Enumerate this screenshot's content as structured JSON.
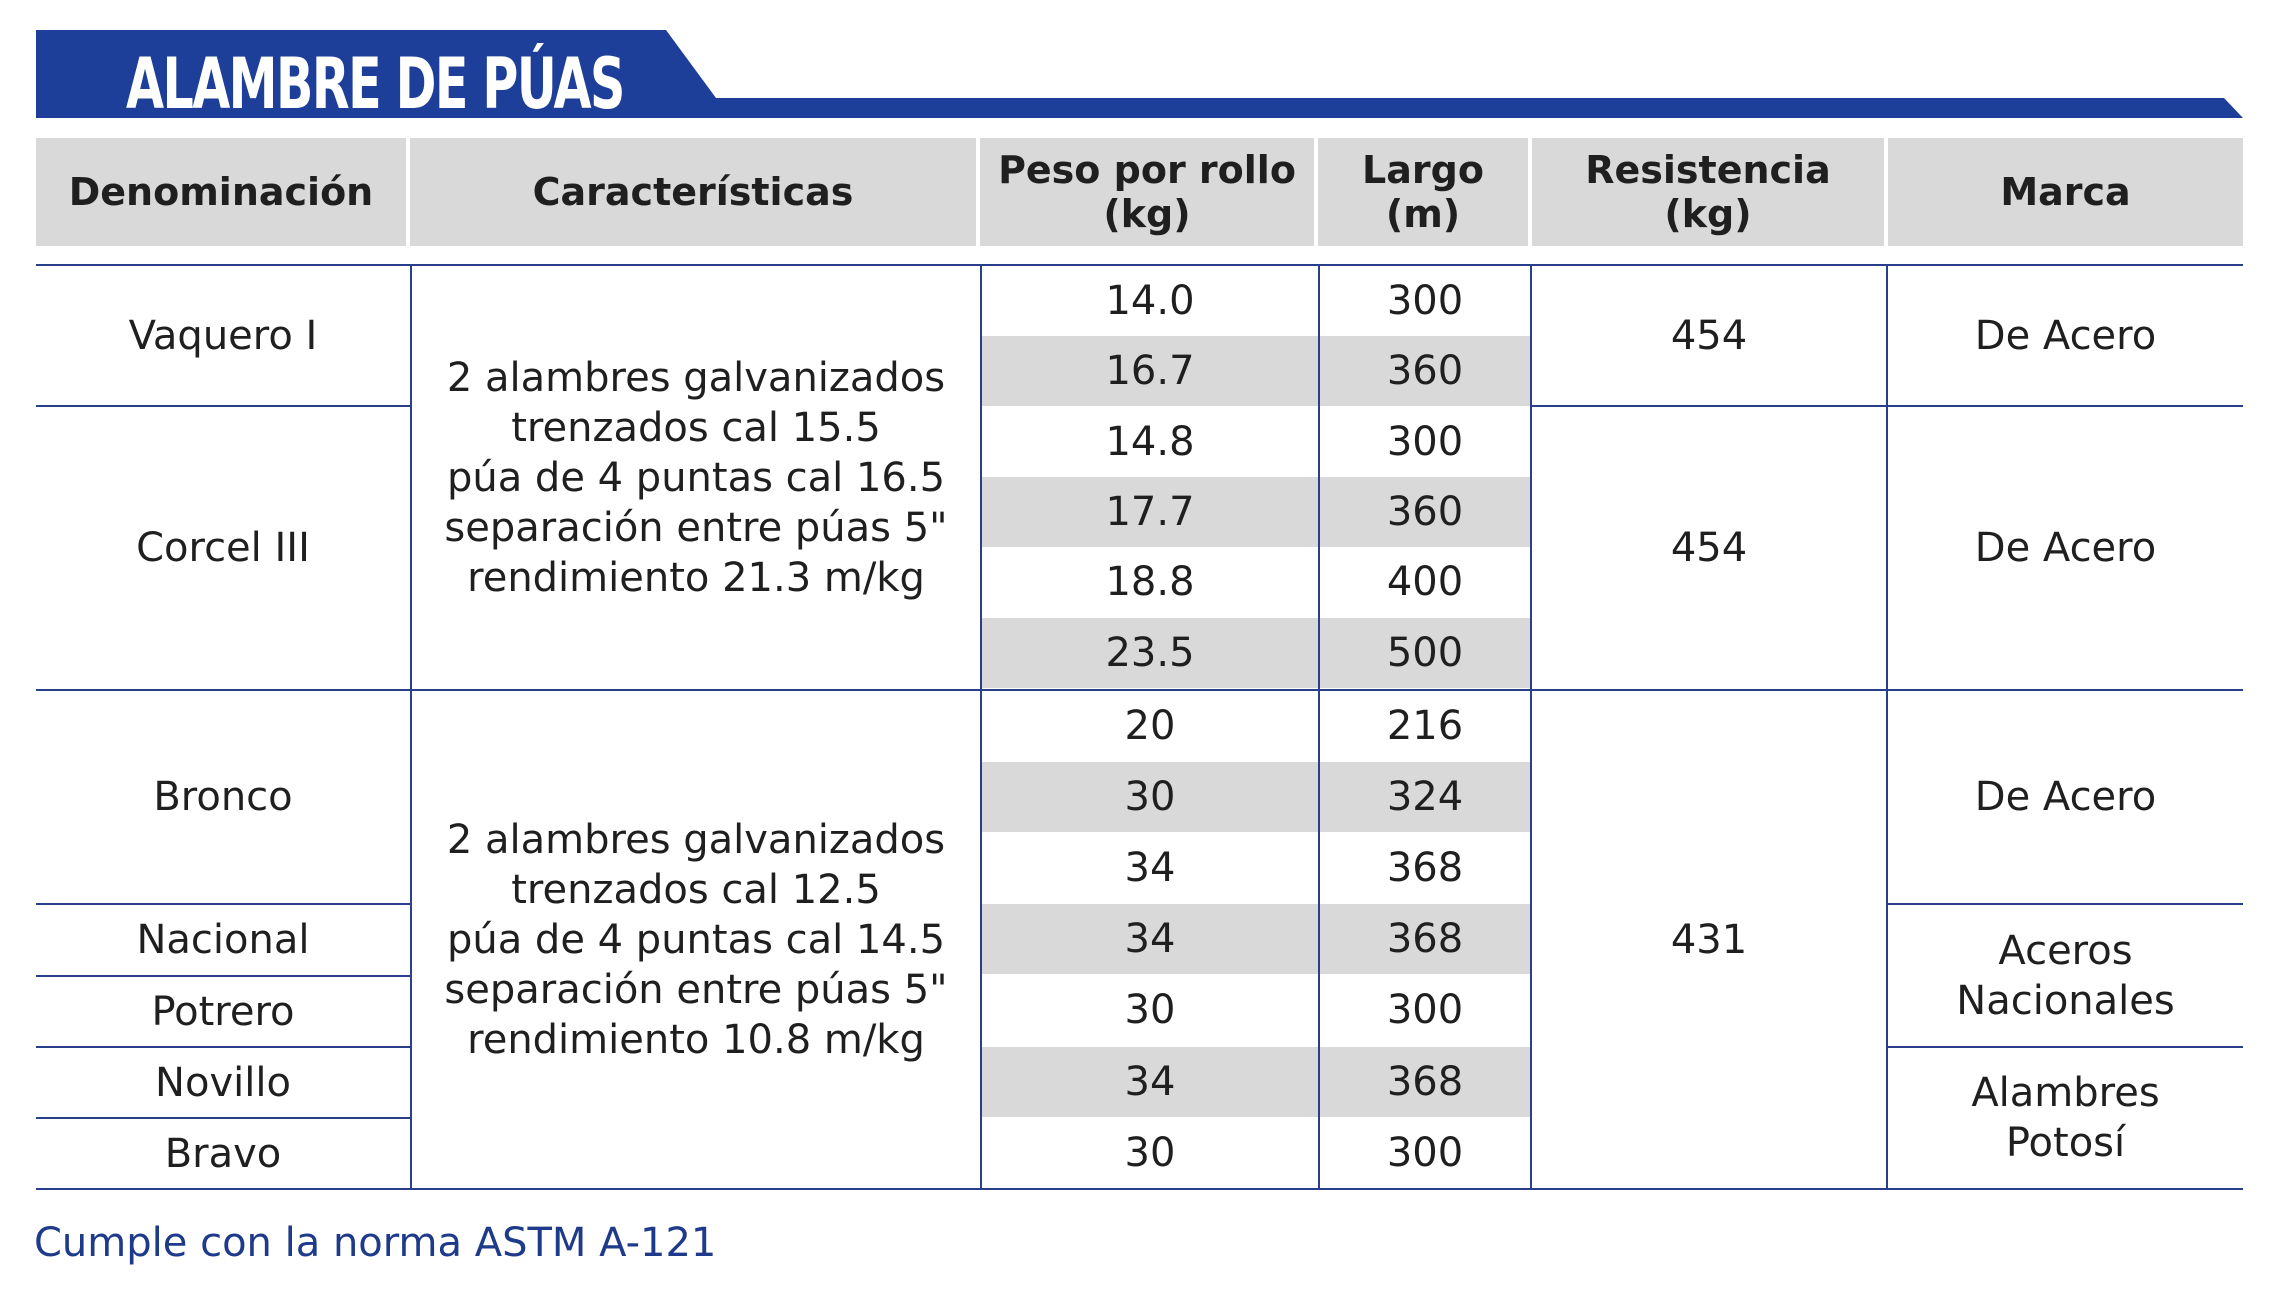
{
  "title": "ALAMBRE DE PÚAS",
  "colors": {
    "banner": "#1e3f99",
    "header_bg": "#d9d9d9",
    "line": "#2a3f8a",
    "footer_text": "#1e3a8a"
  },
  "headers": [
    "Denominación",
    "Características",
    "Peso por rollo\n(kg)",
    "Largo\n(m)",
    "Resistencia\n(kg)",
    "Marca"
  ],
  "peso": [
    "14.0",
    "16.7",
    "14.8",
    "17.7",
    "18.8",
    "23.5",
    "20",
    "30",
    "34",
    "34",
    "30",
    "34",
    "30"
  ],
  "largo": [
    "300",
    "360",
    "300",
    "360",
    "400",
    "500",
    "216",
    "324",
    "368",
    "368",
    "300",
    "368",
    "300"
  ],
  "denominacion": [
    "Vaquero I",
    "Corcel III",
    "Bronco",
    "Nacional",
    "Potrero",
    "Novillo",
    "Bravo"
  ],
  "caracteristicas": [
    "2 alambres galvanizados\ntrenzados cal 15.5\npúa de 4 puntas cal 16.5\nseparación entre púas 5\"\nrendimiento 21.3 m/kg",
    "2 alambres galvanizados\ntrenzados cal 12.5\npúa de 4 puntas cal 14.5\nseparación entre púas 5\"\nrendimiento 10.8 m/kg"
  ],
  "resistencia": [
    "454",
    "454",
    "431"
  ],
  "marca": [
    "De Acero",
    "De Acero",
    "De Acero",
    "Aceros\nNacionales",
    "Alambres\nPotosí"
  ],
  "footer": "Cumple con la norma ASTM A-121"
}
